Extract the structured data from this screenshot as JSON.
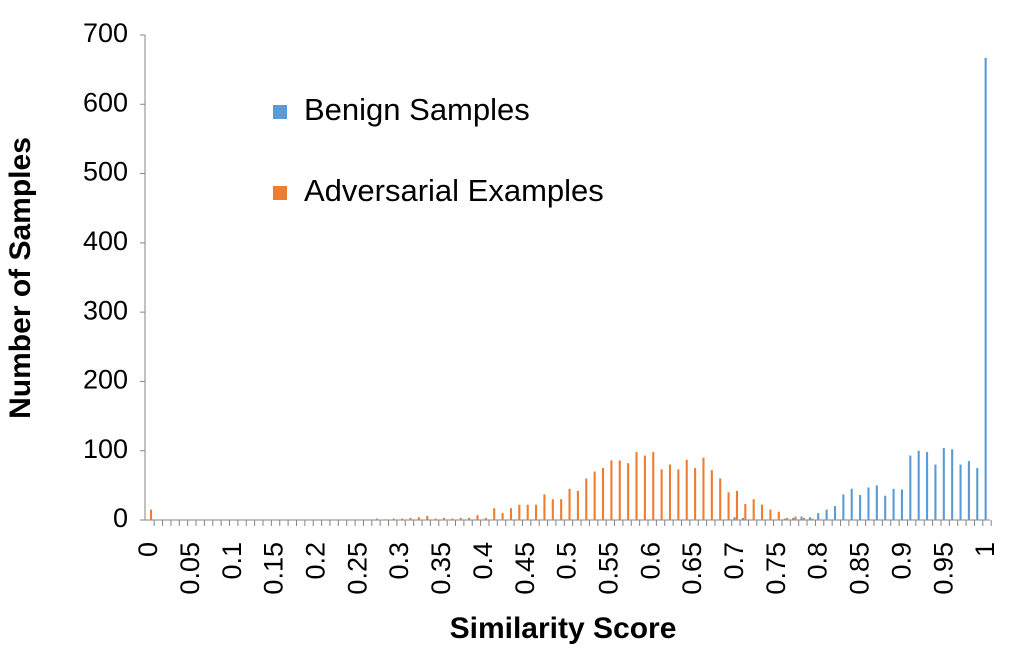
{
  "chart_data": {
    "type": "bar",
    "x_label": "Similarity Score",
    "y_label": "Number of Samples",
    "categories": [
      "0",
      null,
      null,
      null,
      null,
      "0.05",
      null,
      null,
      null,
      null,
      "0.1",
      null,
      null,
      null,
      null,
      "0.15",
      null,
      null,
      null,
      null,
      "0.2",
      null,
      null,
      null,
      null,
      "0.25",
      null,
      null,
      null,
      null,
      "0.3",
      null,
      null,
      null,
      null,
      "0.35",
      null,
      null,
      null,
      null,
      "0.4",
      null,
      null,
      null,
      null,
      "0.45",
      null,
      null,
      null,
      null,
      "0.5",
      null,
      null,
      null,
      null,
      "0.55",
      null,
      null,
      null,
      null,
      "0.6",
      null,
      null,
      null,
      null,
      "0.65",
      null,
      null,
      null,
      null,
      "0.7",
      null,
      null,
      null,
      null,
      "0.75",
      null,
      null,
      null,
      null,
      "0.8",
      null,
      null,
      null,
      null,
      "0.85",
      null,
      null,
      null,
      null,
      "0.9",
      null,
      null,
      null,
      null,
      "0.95",
      null,
      null,
      null,
      null,
      "1"
    ],
    "series": [
      {
        "name": "Benign Samples",
        "color": "#5b9bd5",
        "values": [
          0,
          0,
          0,
          0,
          0,
          0,
          0,
          0,
          0,
          0,
          0,
          0,
          0,
          0,
          0,
          0,
          0,
          0,
          0,
          0,
          0,
          0,
          0,
          0,
          0,
          0,
          0,
          0,
          0,
          0,
          0,
          0,
          0,
          0,
          0,
          0,
          0,
          0,
          0,
          0,
          0,
          0,
          0,
          0,
          0,
          0,
          0,
          0,
          0,
          0,
          0,
          0,
          0,
          0,
          0,
          0,
          0,
          0,
          0,
          0,
          0,
          0,
          0,
          0,
          0,
          0,
          0,
          0,
          0,
          0,
          4,
          3,
          0,
          0,
          0,
          0,
          2,
          3,
          5,
          4,
          10,
          15,
          20,
          37,
          45,
          36,
          47,
          50,
          35,
          45,
          44,
          93,
          100,
          98,
          80,
          104,
          102,
          80,
          85,
          75,
          667
        ]
      },
      {
        "name": "Adversarial Examples",
        "color": "#ed7d31",
        "values": [
          15,
          0,
          0,
          0,
          0,
          0,
          0,
          0,
          0,
          0,
          0,
          0,
          0,
          0,
          0,
          0,
          0,
          0,
          0,
          0,
          0,
          0,
          0,
          0,
          0,
          0,
          0,
          2,
          1,
          2,
          2,
          3,
          4,
          6,
          2,
          3,
          2,
          3,
          3,
          7,
          3,
          17,
          10,
          17,
          22,
          22,
          22,
          37,
          30,
          30,
          45,
          42,
          60,
          70,
          75,
          86,
          86,
          82,
          98,
          93,
          98,
          73,
          80,
          73,
          87,
          75,
          90,
          72,
          60,
          40,
          42,
          23,
          30,
          22,
          15,
          12,
          3,
          5,
          3,
          2,
          0,
          0,
          0,
          0,
          0,
          0,
          0,
          0,
          0,
          0,
          0,
          0,
          0,
          0,
          0,
          0,
          0,
          0,
          0,
          0,
          0
        ]
      }
    ],
    "ylim": [
      0,
      700
    ],
    "yticks": [
      0,
      100,
      200,
      300,
      400,
      500,
      600,
      700
    ],
    "grid": false
  }
}
